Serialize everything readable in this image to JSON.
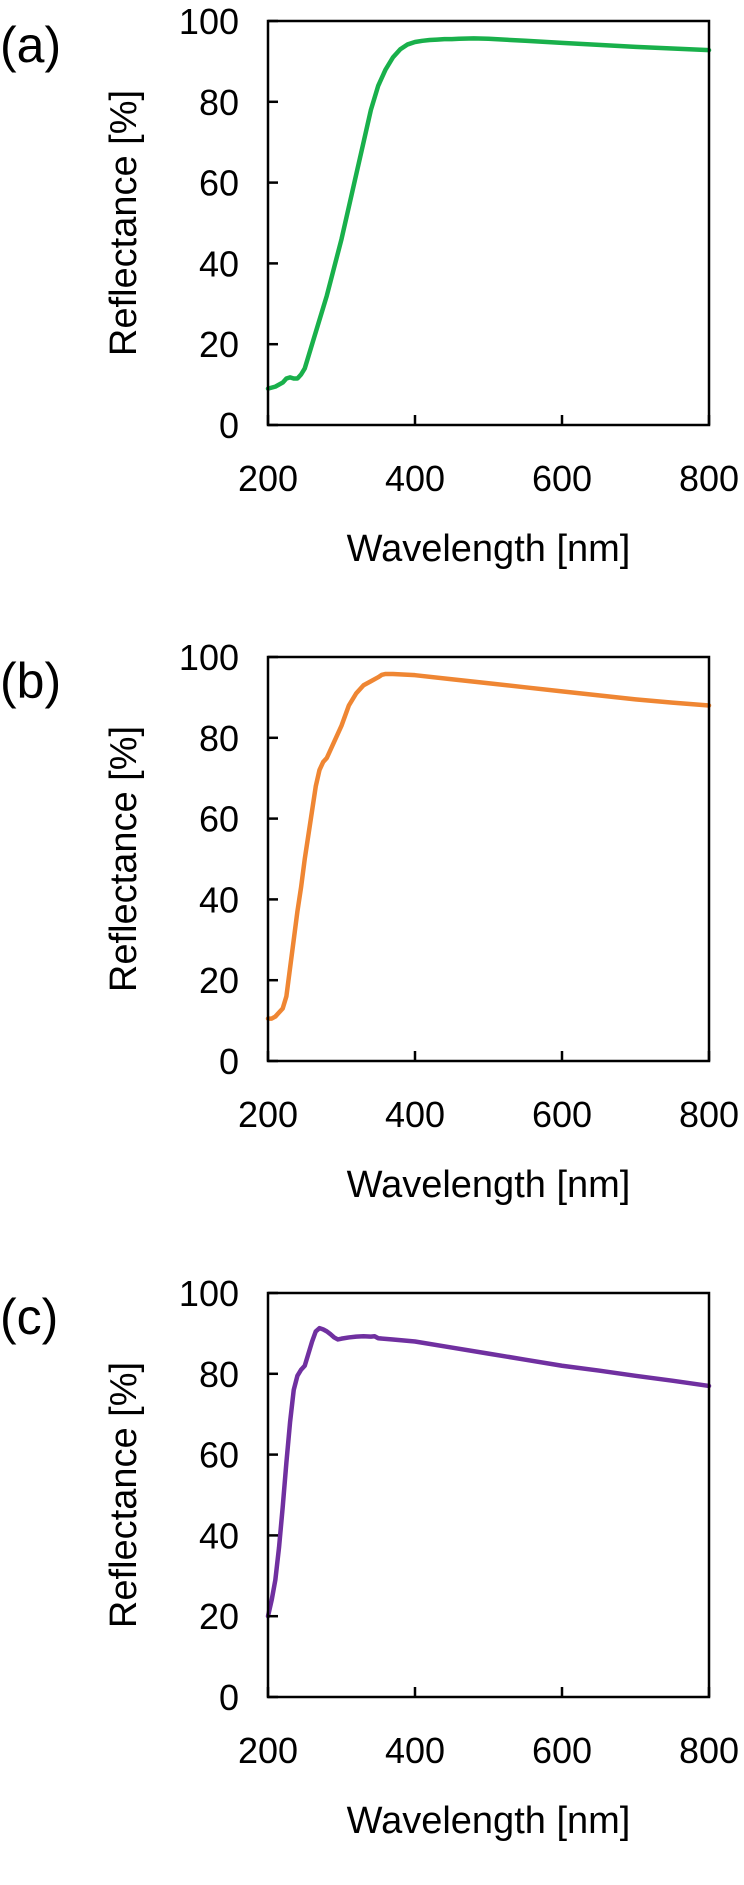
{
  "chart_data": [
    {
      "type": "line",
      "panel_label": "(a)",
      "xlabel": "Wavelength [nm]",
      "ylabel": "Reflectance [%]",
      "xlim": [
        200,
        800
      ],
      "ylim": [
        0,
        100
      ],
      "xticks": [
        200,
        400,
        600,
        800
      ],
      "yticks": [
        0,
        20,
        40,
        60,
        80,
        100
      ],
      "grid": false,
      "series": [
        {
          "color": "#19b04b",
          "x": [
            200,
            210,
            220,
            225,
            230,
            235,
            240,
            245,
            250,
            255,
            260,
            270,
            280,
            290,
            300,
            310,
            320,
            330,
            340,
            350,
            360,
            370,
            380,
            390,
            400,
            410,
            420,
            430,
            440,
            450,
            460,
            480,
            500,
            550,
            600,
            650,
            700,
            750,
            800
          ],
          "y": [
            9,
            9.5,
            10.5,
            11.5,
            11.8,
            11.5,
            11.5,
            12.5,
            14,
            17,
            20,
            26,
            32,
            39,
            46,
            54,
            62,
            70,
            78,
            84,
            88,
            91,
            93,
            94.2,
            94.8,
            95.1,
            95.3,
            95.4,
            95.5,
            95.5,
            95.6,
            95.7,
            95.6,
            95.1,
            94.6,
            94.1,
            93.6,
            93.2,
            92.8
          ]
        }
      ]
    },
    {
      "type": "line",
      "panel_label": "(b)",
      "xlabel": "Wavelength [nm]",
      "ylabel": "Reflectance [%]",
      "xlim": [
        200,
        800
      ],
      "ylim": [
        0,
        100
      ],
      "xticks": [
        200,
        400,
        600,
        800
      ],
      "yticks": [
        0,
        20,
        40,
        60,
        80,
        100
      ],
      "grid": false,
      "series": [
        {
          "color": "#ef8633",
          "x": [
            200,
            205,
            210,
            215,
            220,
            225,
            230,
            235,
            240,
            245,
            250,
            255,
            260,
            265,
            270,
            275,
            280,
            290,
            300,
            310,
            320,
            330,
            340,
            350,
            355,
            360,
            370,
            400,
            450,
            500,
            550,
            600,
            650,
            700,
            750,
            800
          ],
          "y": [
            10.5,
            10.5,
            11,
            12,
            13,
            16,
            23,
            30,
            37,
            43,
            50,
            56,
            62,
            68,
            72,
            74,
            75,
            79,
            83,
            88,
            91,
            93,
            94,
            95,
            95.6,
            95.8,
            95.8,
            95.5,
            94.5,
            93.5,
            92.5,
            91.5,
            90.5,
            89.5,
            88.7,
            88
          ]
        }
      ]
    },
    {
      "type": "line",
      "panel_label": "(c)",
      "xlabel": "Wavelength [nm]",
      "ylabel": "Reflectance [%]",
      "xlim": [
        200,
        800
      ],
      "ylim": [
        0,
        100
      ],
      "xticks": [
        200,
        400,
        600,
        800
      ],
      "yticks": [
        0,
        20,
        40,
        60,
        80,
        100
      ],
      "grid": false,
      "series": [
        {
          "color": "#7030a0",
          "x": [
            200,
            205,
            210,
            215,
            220,
            225,
            230,
            235,
            240,
            245,
            250,
            255,
            260,
            265,
            270,
            275,
            280,
            285,
            290,
            295,
            300,
            310,
            320,
            330,
            340,
            345,
            350,
            370,
            400,
            450,
            500,
            550,
            600,
            650,
            700,
            750,
            800
          ],
          "y": [
            20,
            24,
            29,
            37,
            47,
            58,
            68,
            76,
            79.5,
            81,
            82,
            85,
            88,
            90.5,
            91.3,
            91,
            90.5,
            89.8,
            89,
            88.5,
            88.7,
            89,
            89.2,
            89.3,
            89.2,
            89.3,
            88.8,
            88.5,
            88,
            86.5,
            85,
            83.5,
            82,
            80.8,
            79.5,
            78.3,
            77
          ]
        }
      ]
    }
  ]
}
